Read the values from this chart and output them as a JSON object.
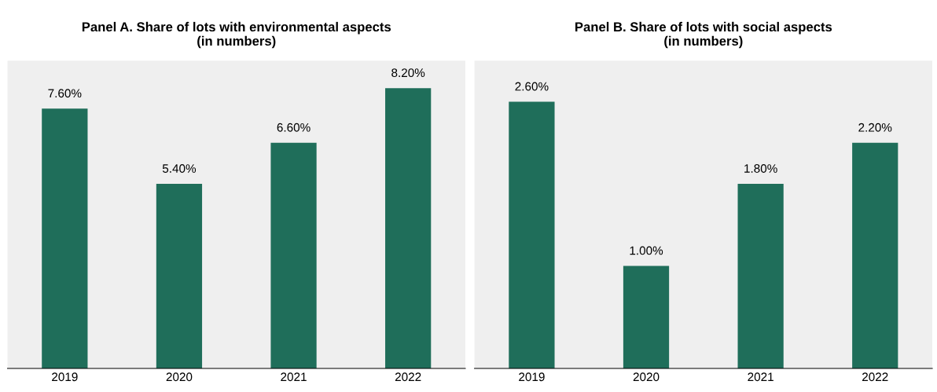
{
  "chart_data": [
    {
      "type": "bar",
      "title": "Panel A. Share of lots with environmental aspects\n(in numbers)",
      "categories": [
        "2019",
        "2020",
        "2021",
        "2022"
      ],
      "values": [
        7.6,
        5.4,
        6.6,
        8.2
      ],
      "value_labels": [
        "7.60%",
        "5.40%",
        "6.60%",
        "8.20%"
      ],
      "color": "#1f6e5a",
      "ylim": [
        0,
        9
      ],
      "tick_labels": "x",
      "grid": false,
      "legend": false
    },
    {
      "type": "bar",
      "title": "Panel B. Share of lots with social aspects\n(in numbers)",
      "categories": [
        "2019",
        "2020",
        "2021",
        "2022"
      ],
      "values": [
        2.6,
        1.0,
        1.8,
        2.2
      ],
      "value_labels": [
        "2.60%",
        "1.00%",
        "1.80%",
        "2.20%"
      ],
      "color": "#1f6e5a",
      "ylim": [
        0,
        3
      ],
      "tick_labels": "x",
      "grid": false,
      "legend": false
    }
  ]
}
